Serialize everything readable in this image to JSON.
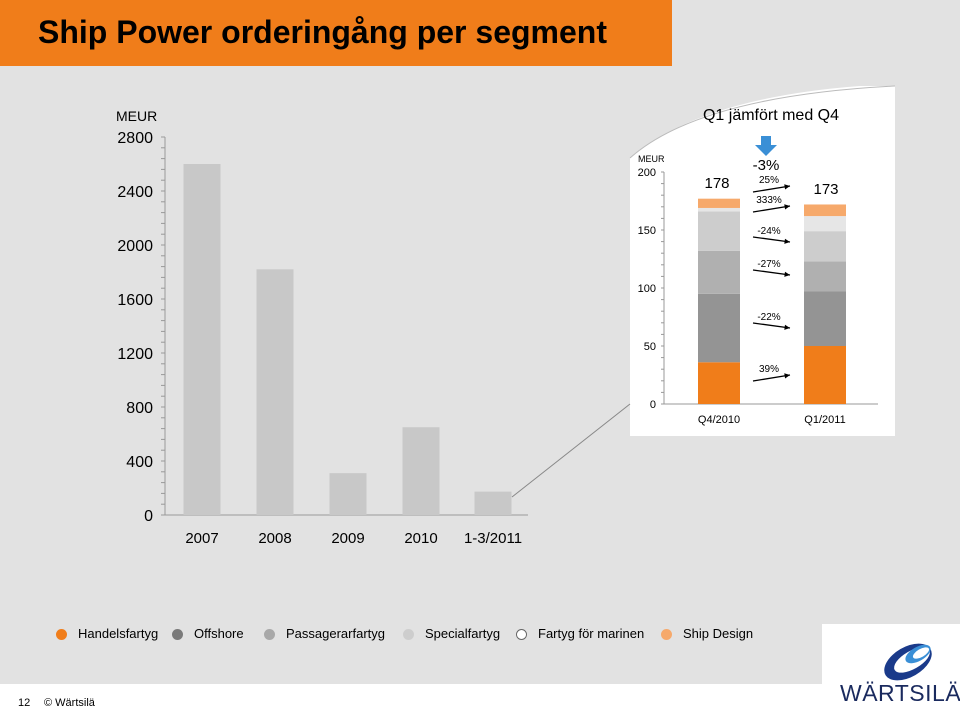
{
  "page_title": "Ship Power orderingång per segment",
  "footer": {
    "page_number": "12",
    "copyright": "© Wärtsilä"
  },
  "logo_text": "WÄRTSILÄ",
  "colors": {
    "orange": "#f07d1a",
    "offshore": "#949494",
    "passenger": "#b0b0b0",
    "special": "#cdcdcd",
    "marine": "#e6e6e6",
    "ship_design": "#f6a96b",
    "annual_bar": "#c8c8c8",
    "arrow_blue": "#3a8fd6"
  },
  "legend": [
    {
      "label": "Handelsfartyg",
      "color": "#f07d1a",
      "hollow": false
    },
    {
      "label": "Offshore",
      "color": "#7a7a7a",
      "hollow": false
    },
    {
      "label": "Passagerarfartyg",
      "color": "#a8a8a8",
      "hollow": false
    },
    {
      "label": "Specialfartyg",
      "color": "#cdcdcd",
      "hollow": false
    },
    {
      "label": "Fartyg för marinen",
      "color": "#ffffff",
      "hollow": true
    },
    {
      "label": "Ship Design",
      "color": "#f6a96b",
      "hollow": false
    }
  ],
  "chart_data": [
    {
      "type": "bar",
      "ylabel": "MEUR",
      "ylim": [
        0,
        2800
      ],
      "yticks": [
        0,
        400,
        800,
        1200,
        1600,
        2000,
        2400,
        2800
      ],
      "categories": [
        "2007",
        "2008",
        "2009",
        "2010",
        "1-3/2011"
      ],
      "values": [
        2600,
        1820,
        310,
        650,
        173
      ]
    },
    {
      "type": "bar",
      "stacked": true,
      "title": "Q1 jämfört med Q4",
      "ylabel": "MEUR",
      "ylim": [
        0,
        200
      ],
      "yticks": [
        0,
        50,
        100,
        150,
        200
      ],
      "categories": [
        "Q4/2010",
        "Q1/2011"
      ],
      "totals": [
        "178",
        "173"
      ],
      "total_change": "-3%",
      "series": [
        {
          "name": "Handelsfartyg",
          "values": [
            36,
            50
          ],
          "change": "39%"
        },
        {
          "name": "Offshore",
          "values": [
            59,
            47
          ],
          "change": "-22%"
        },
        {
          "name": "Passagerarfartyg",
          "values": [
            37,
            26
          ],
          "change": "-27%"
        },
        {
          "name": "Specialfartyg",
          "values": [
            34,
            26
          ],
          "change": "-24%"
        },
        {
          "name": "Fartyg för marinen",
          "values": [
            3,
            13
          ],
          "change": "333%"
        },
        {
          "name": "Ship Design",
          "values": [
            8,
            10
          ],
          "change": "25%"
        }
      ]
    }
  ]
}
